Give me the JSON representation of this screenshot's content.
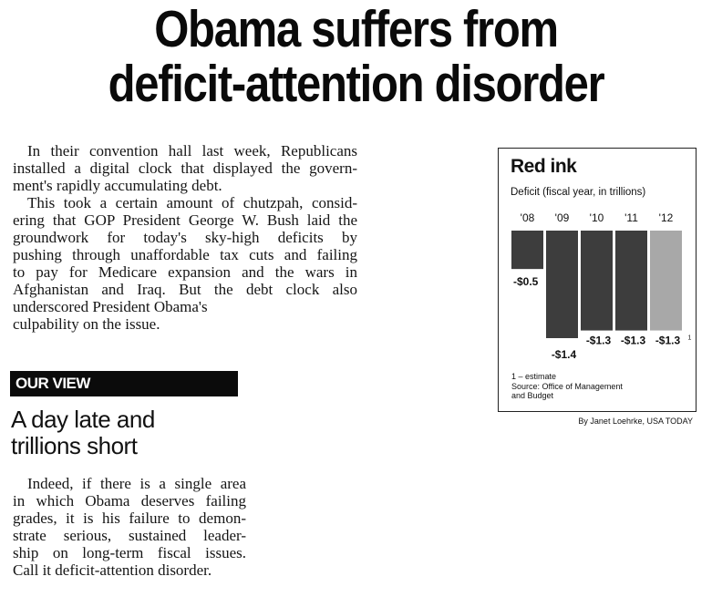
{
  "headline": {
    "line1": "Obama suffers from",
    "line2": "deficit-attention disorder"
  },
  "paragraphs": {
    "p1": [
      "In their convention hall last week, Republicans",
      "installed a digital clock that displayed the govern-",
      "ment's rapidly accumulating debt."
    ],
    "p2": [
      "This took a certain amount of chutzpah, consid-",
      "ering that GOP President George W. Bush laid the",
      "groundwork for today's sky-high deficits by",
      "pushing through unaffordable tax cuts and failing",
      "to pay for Medicare expansion and the wars in",
      "Afghanistan and Iraq. But the debt clock also",
      "underscored President Obama's",
      "culpability on the issue."
    ],
    "p3": [
      "Indeed, if there is a single area",
      "in which Obama deserves failing",
      "grades, it is his failure to demon-",
      "strate serious, sustained leader-",
      "ship on long-term fiscal issues.",
      "Call it deficit-attention disorder."
    ]
  },
  "section_label": "OUR VIEW",
  "subhead": {
    "line1": "A day late and",
    "line2": "trillions short"
  },
  "chart_data": {
    "type": "bar",
    "title": "Red ink",
    "subtitle": "Deficit (fiscal year, in trillions)",
    "categories": [
      "'08",
      "'09",
      "'10",
      "'11",
      "'12"
    ],
    "values": [
      -0.5,
      -1.4,
      -1.3,
      -1.3,
      -1.3
    ],
    "value_labels": [
      "-$0.5",
      "-$1.4",
      "-$1.3",
      "-$1.3",
      "-$1.3"
    ],
    "estimate_marker": "1",
    "estimate_index": 4,
    "ylim": [
      -1.4,
      0
    ],
    "colors": {
      "actual": "#3d3d3d",
      "estimate": "#a8a8a8"
    },
    "footnote": "1 – estimate",
    "source_line1": "Source: Office of Management",
    "source_line2": "and Budget"
  },
  "credit": "By Janet Loehrke, USA TODAY"
}
